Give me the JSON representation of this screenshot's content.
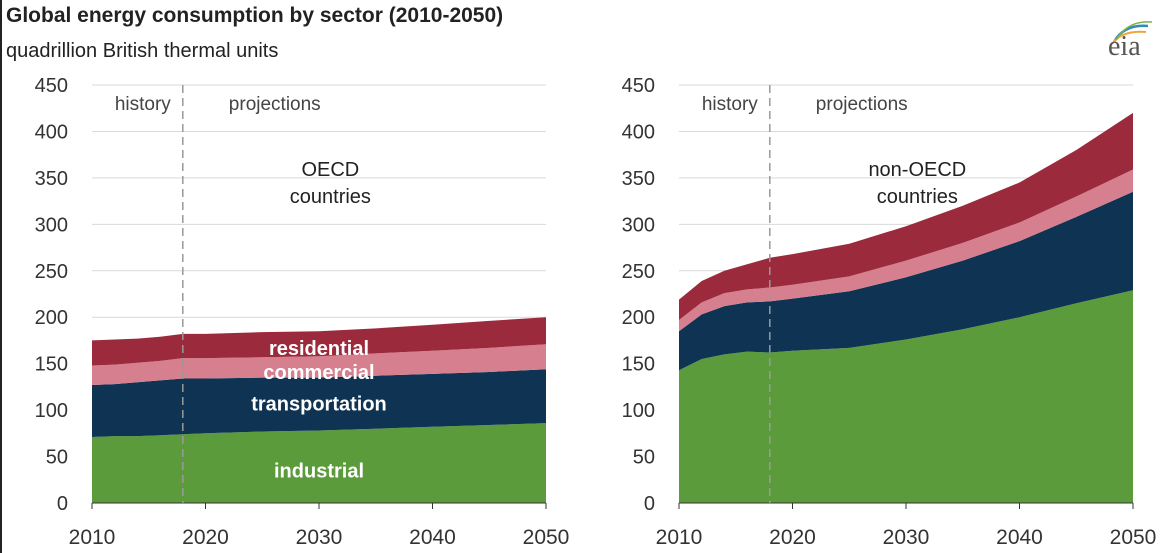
{
  "header": {
    "title": "Global energy consumption by sector (2010-2050)",
    "subtitle": "quadrillion British thermal units",
    "logo_text": "eia"
  },
  "chart_data": [
    {
      "type": "area",
      "stacked": true,
      "region_label_line1": "OECD",
      "region_label_line2": "countries",
      "history_label": "history",
      "projections_label": "projections",
      "history_end": 2018,
      "x": [
        2010,
        2012,
        2014,
        2016,
        2018,
        2020,
        2025,
        2030,
        2035,
        2040,
        2045,
        2050
      ],
      "xlim": [
        2010,
        2050
      ],
      "ylim": [
        0,
        450
      ],
      "yticks": [
        0,
        50,
        100,
        150,
        200,
        250,
        300,
        350,
        400,
        450
      ],
      "xticks": [
        2010,
        2020,
        2030,
        2040,
        2050
      ],
      "grid": true,
      "series": [
        {
          "name": "industrial",
          "color": "#5c9b3c",
          "values": [
            71,
            72,
            72,
            73,
            74,
            75,
            77,
            78,
            80,
            82,
            84,
            86
          ]
        },
        {
          "name": "transportation",
          "color": "#0f3353",
          "values": [
            56,
            56,
            58,
            59,
            60,
            59,
            58,
            57,
            57,
            57,
            57,
            58
          ]
        },
        {
          "name": "commercial",
          "color": "#d67f8e",
          "values": [
            21,
            21,
            21,
            21,
            22,
            22,
            22,
            23,
            24,
            25,
            26,
            27
          ]
        },
        {
          "name": "residential",
          "color": "#9c2a3d",
          "values": [
            27,
            27,
            26,
            26,
            26,
            26,
            27,
            27,
            27,
            28,
            29,
            29
          ]
        }
      ],
      "series_labels": [
        "industrial",
        "transportation",
        "commercial",
        "residential"
      ]
    },
    {
      "type": "area",
      "stacked": true,
      "region_label_line1": "non-OECD",
      "region_label_line2": "countries",
      "history_label": "history",
      "projections_label": "projections",
      "history_end": 2018,
      "x": [
        2010,
        2012,
        2014,
        2016,
        2018,
        2020,
        2025,
        2030,
        2035,
        2040,
        2045,
        2050
      ],
      "xlim": [
        2010,
        2050
      ],
      "ylim": [
        0,
        450
      ],
      "yticks": [
        0,
        50,
        100,
        150,
        200,
        250,
        300,
        350,
        400,
        450
      ],
      "xticks": [
        2010,
        2020,
        2030,
        2040,
        2050
      ],
      "grid": true,
      "series": [
        {
          "name": "industrial",
          "color": "#5c9b3c",
          "values": [
            143,
            155,
            160,
            163,
            162,
            164,
            167,
            176,
            187,
            200,
            215,
            229
          ]
        },
        {
          "name": "transportation",
          "color": "#0f3353",
          "values": [
            42,
            48,
            52,
            53,
            55,
            56,
            61,
            67,
            74,
            82,
            93,
            106
          ]
        },
        {
          "name": "commercial",
          "color": "#d67f8e",
          "values": [
            12,
            13,
            14,
            14,
            15,
            15,
            16,
            18,
            19,
            20,
            22,
            24
          ]
        },
        {
          "name": "residential",
          "color": "#9c2a3d",
          "values": [
            22,
            23,
            24,
            27,
            32,
            33,
            35,
            37,
            40,
            43,
            50,
            61
          ]
        }
      ]
    }
  ]
}
